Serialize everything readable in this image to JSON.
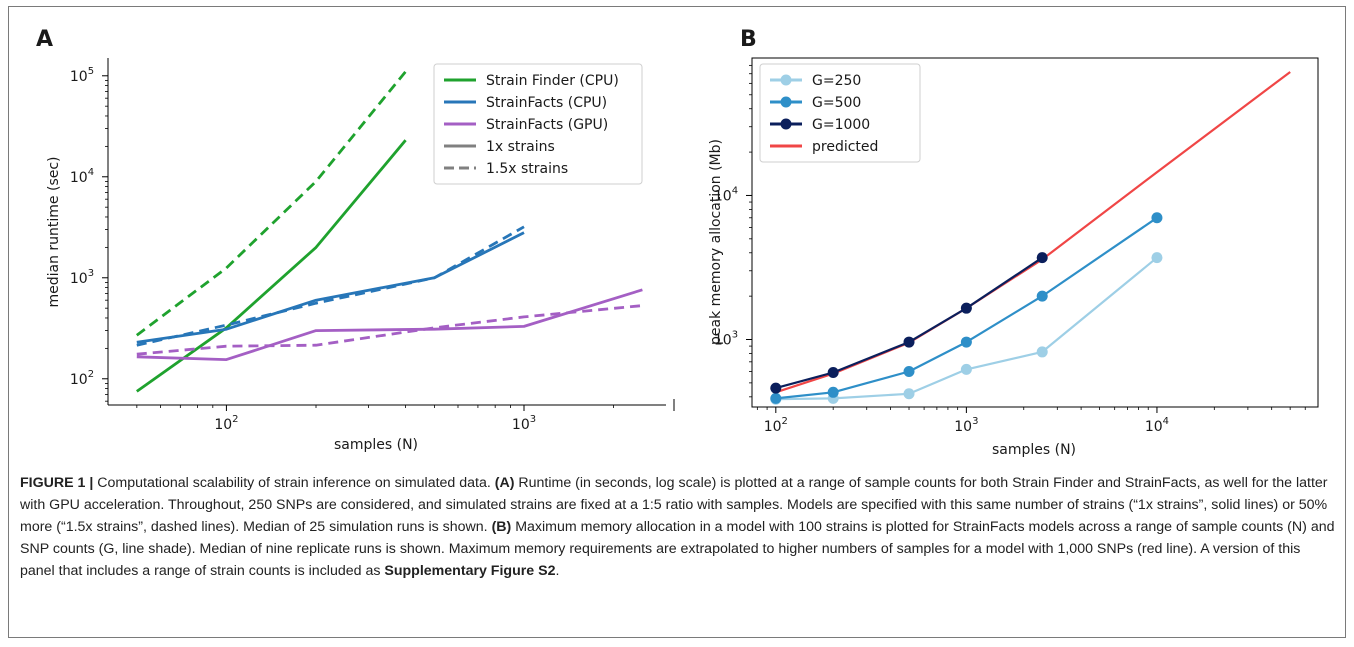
{
  "figure": {
    "caption_label": "FIGURE 1 |",
    "caption_parts": [
      {
        "text": "Computational scalability of strain inference on simulated data. ",
        "bold": false
      },
      {
        "text": "(A)",
        "bold": true
      },
      {
        "text": " Runtime (in seconds, log scale) is plotted at a range of sample counts for both Strain Finder and StrainFacts, as well for the latter with GPU acceleration. Throughout, 250 SNPs are considered, and simulated strains are fixed at a 1:5 ratio with samples. Models are specified with this same number of strains (“1x strains”, solid lines) or 50% more (“1.5x strains”, dashed lines). Median of 25 simulation runs is shown. ",
        "bold": false
      },
      {
        "text": "(B)",
        "bold": true
      },
      {
        "text": " Maximum memory allocation in a model with 100 strains is plotted for StrainFacts models across a range of sample counts (N) and SNP counts (G, line shade). Median of nine replicate runs is shown. Maximum memory requirements are extrapolated to higher numbers of samples for a model with 1,000 SNPs (red line). A version of this panel that includes a range of strain counts is included as ",
        "bold": false
      },
      {
        "text": "Supplementary Figure S2",
        "bold": true
      },
      {
        "text": ".",
        "bold": false
      }
    ]
  },
  "chart_data": [
    {
      "type": "line",
      "panel_label": "A",
      "xlabel": "samples (N)",
      "ylabel": "median runtime (sec)",
      "xscale": "log",
      "yscale": "log",
      "xlim": [
        40,
        3000
      ],
      "ylim": [
        55,
        150000
      ],
      "xticks": [
        {
          "value": 100,
          "base": "10",
          "exp": "2"
        },
        {
          "value": 1000,
          "base": "10",
          "exp": "3"
        }
      ],
      "yticks": [
        {
          "value": 100,
          "base": "10",
          "exp": "2"
        },
        {
          "value": 1000,
          "base": "10",
          "exp": "3"
        },
        {
          "value": 10000,
          "base": "10",
          "exp": "4"
        },
        {
          "value": 100000,
          "base": "10",
          "exp": "5"
        }
      ],
      "legend_position": "top-right",
      "legend": [
        {
          "label": "Strain Finder (CPU)",
          "color": "#1fa22e",
          "dash": false
        },
        {
          "label": "StrainFacts (CPU)",
          "color": "#2776b8",
          "dash": false
        },
        {
          "label": "StrainFacts (GPU)",
          "color": "#a45fc4",
          "dash": false
        },
        {
          "label": "1x strains",
          "color": "#808080",
          "dash": false
        },
        {
          "label": "1.5x strains",
          "color": "#808080",
          "dash": true
        }
      ],
      "series": [
        {
          "name": "Strain Finder (CPU), 1x strains",
          "color": "#1fa22e",
          "dash": false,
          "x": [
            50,
            100,
            200,
            400
          ],
          "y": [
            75,
            320,
            2000,
            23000
          ]
        },
        {
          "name": "Strain Finder (CPU), 1.5x strains",
          "color": "#1fa22e",
          "dash": true,
          "x": [
            50,
            100,
            200,
            400
          ],
          "y": [
            270,
            1250,
            9000,
            110000
          ]
        },
        {
          "name": "StrainFacts (CPU), 1x strains",
          "color": "#2776b8",
          "dash": false,
          "x": [
            50,
            100,
            200,
            500,
            1000
          ],
          "y": [
            230,
            310,
            600,
            1000,
            2800
          ]
        },
        {
          "name": "StrainFacts (CPU), 1.5x strains",
          "color": "#2776b8",
          "dash": true,
          "x": [
            50,
            100,
            200,
            500,
            1000
          ],
          "y": [
            215,
            340,
            560,
            1000,
            3200
          ]
        },
        {
          "name": "StrainFacts (GPU), 1x strains",
          "color": "#a45fc4",
          "dash": false,
          "x": [
            50,
            100,
            200,
            500,
            1000,
            2500
          ],
          "y": [
            165,
            155,
            300,
            310,
            330,
            760
          ]
        },
        {
          "name": "StrainFacts (GPU), 1.5x strains",
          "color": "#a45fc4",
          "dash": true,
          "x": [
            50,
            100,
            200,
            500,
            1000,
            2500
          ],
          "y": [
            175,
            210,
            215,
            320,
            410,
            530
          ]
        }
      ]
    },
    {
      "type": "line",
      "panel_label": "B",
      "xlabel": "samples (N)",
      "ylabel": "peak memory allocation (Mb)",
      "xscale": "log",
      "yscale": "log",
      "xlim": [
        75,
        70000
      ],
      "ylim": [
        340,
        90000
      ],
      "xticks": [
        {
          "value": 100,
          "base": "10",
          "exp": "2"
        },
        {
          "value": 1000,
          "base": "10",
          "exp": "3"
        },
        {
          "value": 10000,
          "base": "10",
          "exp": "4"
        }
      ],
      "yticks": [
        {
          "value": 1000,
          "base": "10",
          "exp": "3"
        },
        {
          "value": 10000,
          "base": "10",
          "exp": "4"
        }
      ],
      "legend_position": "top-left",
      "legend": [
        {
          "label": "G=250",
          "color": "#9ecfe6",
          "marker": true
        },
        {
          "label": "G=500",
          "color": "#2e8fc8",
          "marker": true
        },
        {
          "label": "G=1000",
          "color": "#0b1f5c",
          "marker": true
        },
        {
          "label": "predicted",
          "color": "#f04646",
          "marker": false
        }
      ],
      "series": [
        {
          "name": "predicted",
          "color": "#f04646",
          "marker": false,
          "x": [
            100,
            200,
            500,
            1000,
            2500,
            10000,
            50000
          ],
          "y": [
            430,
            580,
            950,
            1650,
            3600,
            14500,
            72000
          ]
        },
        {
          "name": "G=250",
          "color": "#9ecfe6",
          "marker": true,
          "x": [
            100,
            200,
            500,
            1000,
            2500,
            10000
          ],
          "y": [
            385,
            390,
            420,
            620,
            820,
            3700
          ]
        },
        {
          "name": "G=500",
          "color": "#2e8fc8",
          "marker": true,
          "x": [
            100,
            200,
            500,
            1000,
            2500,
            10000
          ],
          "y": [
            390,
            430,
            600,
            960,
            2000,
            7000
          ]
        },
        {
          "name": "G=1000",
          "color": "#0b1f5c",
          "marker": true,
          "x": [
            100,
            200,
            500,
            1000,
            2500
          ],
          "y": [
            460,
            590,
            960,
            1650,
            3700
          ]
        }
      ]
    }
  ]
}
